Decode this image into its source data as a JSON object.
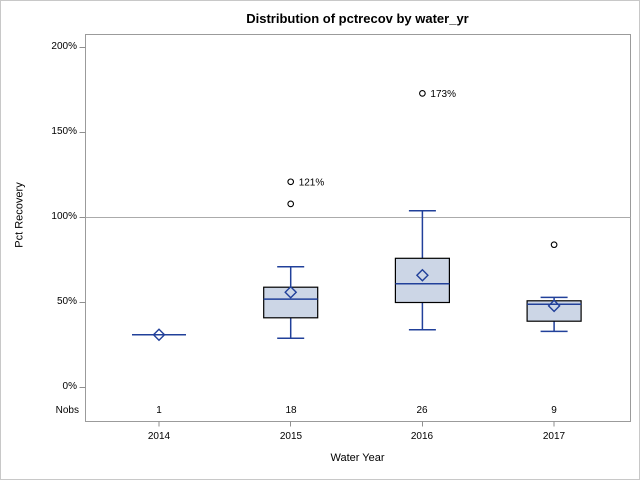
{
  "title": "Distribution of pctrecov by water_yr",
  "y_axis": {
    "label": "Pct Recovery",
    "tick_labels": [
      "200%",
      "150%",
      "100%",
      "50%",
      "0%"
    ]
  },
  "x_axis": {
    "label": "Water Year",
    "categories": [
      "2014",
      "2015",
      "2016",
      "2017"
    ]
  },
  "nobs": {
    "label": "Nobs",
    "values": [
      "1",
      "18",
      "26",
      "9"
    ]
  },
  "chart_data": {
    "type": "box",
    "title": "Distribution of pctrecov by water_yr",
    "xlabel": "Water Year",
    "ylabel": "Pct Recovery",
    "categories": [
      "2014",
      "2015",
      "2016",
      "2017"
    ],
    "ylim": [
      0,
      200
    ],
    "y_unit": "percent",
    "y_ticks": [
      0,
      50,
      100,
      150,
      200
    ],
    "reference_line": 100,
    "grid": false,
    "nobs": [
      1,
      18,
      26,
      9
    ],
    "series": [
      {
        "category": "2014",
        "n": 1,
        "low": 31,
        "q1": 31,
        "median": 31,
        "q3": 31,
        "high": 31,
        "mean": 31,
        "outliers": []
      },
      {
        "category": "2015",
        "n": 18,
        "low": 29,
        "q1": 41,
        "median": 52,
        "q3": 59,
        "high": 71,
        "mean": 56,
        "outliers": [
          {
            "value": 108
          },
          {
            "value": 121,
            "label": "121%"
          }
        ]
      },
      {
        "category": "2016",
        "n": 26,
        "low": 34,
        "q1": 50,
        "median": 61,
        "q3": 76,
        "high": 104,
        "mean": 66,
        "outliers": [
          {
            "value": 173,
            "label": "173%"
          }
        ]
      },
      {
        "category": "2017",
        "n": 9,
        "low": 33,
        "q1": 39,
        "median": 49,
        "q3": 51,
        "high": 53,
        "mean": 48,
        "outliers": [
          {
            "value": 84
          }
        ]
      }
    ],
    "colors": {
      "box_fill": "#ccd6e6",
      "box_border": "#000000",
      "line": "#21409a",
      "outlier": "#000000",
      "reference": "#ababab",
      "frame": "#9b9b9b",
      "tick": "#8f8f8f",
      "text": "#000000",
      "background": "#ffffff"
    }
  }
}
